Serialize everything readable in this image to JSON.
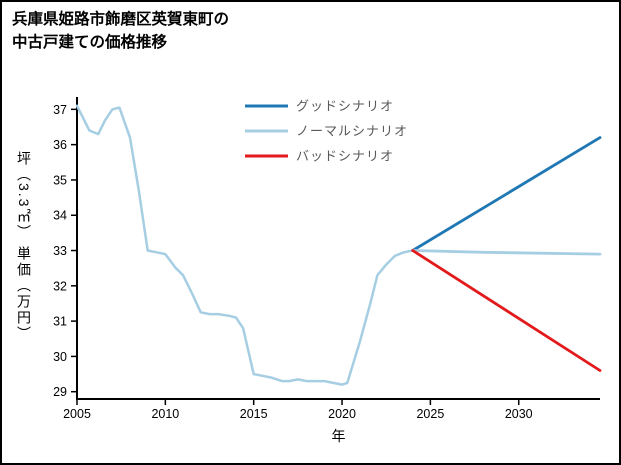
{
  "chart_data": {
    "type": "line",
    "title": "兵庫県姫路市飾磨区英賀東町の中古戸建ての価格推移",
    "title_lines": [
      "兵庫県姫路市飾磨区英賀東町の",
      "中古戸建ての価格推移"
    ],
    "xlabel": "年",
    "ylabel": "坪（3.3㎡） 単価（万円）",
    "xlim": [
      2005,
      2034.6
    ],
    "ylim": [
      29,
      37
    ],
    "xticks": [
      2005,
      2010,
      2015,
      2020,
      2025,
      2030
    ],
    "yticks": [
      29,
      30,
      31,
      32,
      33,
      34,
      35,
      36,
      37
    ],
    "grid": false,
    "legend": {
      "position": "upper-center-inside",
      "text_color": "#595959"
    },
    "series": [
      {
        "name": "history",
        "in_legend": false,
        "color": "#a6cee3",
        "width": 2.5,
        "x": [
          2005,
          2005.7,
          2006.2,
          2006.6,
          2007,
          2007.4,
          2008,
          2008.5,
          2009,
          2009.5,
          2010,
          2010.6,
          2011,
          2011.5,
          2012,
          2012.5,
          2013,
          2013.6,
          2014,
          2014.4,
          2015,
          2015.5,
          2016,
          2016.6,
          2017,
          2017.5,
          2018,
          2018.6,
          2019,
          2019.5,
          2020,
          2020.3,
          2021,
          2021.6,
          2022,
          2022.5,
          2023,
          2023.5,
          2024
        ],
        "y": [
          37.1,
          36.4,
          36.3,
          36.7,
          37.0,
          37.05,
          36.2,
          34.7,
          33.0,
          32.95,
          32.9,
          32.5,
          32.3,
          31.8,
          31.25,
          31.2,
          31.2,
          31.15,
          31.1,
          30.8,
          29.5,
          29.45,
          29.4,
          29.3,
          29.3,
          29.35,
          29.3,
          29.3,
          29.3,
          29.25,
          29.2,
          29.25,
          30.4,
          31.5,
          32.3,
          32.6,
          32.85,
          32.95,
          33.0
        ]
      },
      {
        "name": "グッドシナリオ",
        "in_legend": true,
        "color": "#1f78b4",
        "width": 2.8,
        "x": [
          2024,
          2034.6
        ],
        "y": [
          33.0,
          36.2
        ]
      },
      {
        "name": "ノーマルシナリオ",
        "in_legend": true,
        "color": "#a6cee3",
        "width": 2.8,
        "x": [
          2024,
          2028,
          2034.6
        ],
        "y": [
          33.0,
          32.95,
          32.9
        ]
      },
      {
        "name": "バッドシナリオ",
        "in_legend": true,
        "color": "#e31a1c",
        "width": 2.8,
        "x": [
          2024,
          2034.6
        ],
        "y": [
          33.0,
          29.6
        ]
      }
    ]
  }
}
